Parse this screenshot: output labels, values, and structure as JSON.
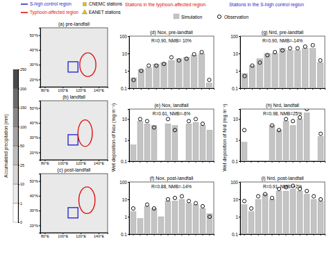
{
  "chart_data": [
    {
      "type": "map",
      "title": "(a) pre-landfall",
      "xlim": [
        75,
        150
      ],
      "ylim": [
        15,
        55
      ],
      "xticks": [
        {
          "value": 80,
          "label": "80°E"
        },
        {
          "value": 100,
          "label": "100°E"
        },
        {
          "value": 120,
          "label": "120°E"
        },
        {
          "value": 140,
          "label": "140°E"
        }
      ],
      "yticks": [
        {
          "value": 20,
          "label": "20°N"
        },
        {
          "value": 30,
          "label": "30°N"
        },
        {
          "value": 40,
          "label": "40°N"
        },
        {
          "value": 50,
          "label": "50°N"
        }
      ],
      "regions": [
        {
          "name": "S-high control region",
          "color": "#2b2bd0",
          "lon": [
            106,
            117
          ],
          "lat": [
            25,
            32
          ]
        },
        {
          "name": "Typhoon-affected region",
          "color": "#e01010",
          "lon": [
            119,
            137
          ],
          "lat": [
            22,
            38
          ]
        }
      ],
      "stations": [
        {
          "name": "CNEMC stations",
          "color": "#f2c300",
          "marker": "square"
        },
        {
          "name": "EANET stations",
          "color": "#f2c300",
          "marker": "triangle"
        }
      ]
    },
    {
      "type": "map",
      "title": "(b) landfall",
      "xlim": [
        75,
        150
      ],
      "ylim": [
        15,
        55
      ],
      "xticks": [
        {
          "value": 80,
          "label": "80°E"
        },
        {
          "value": 100,
          "label": "100°E"
        },
        {
          "value": 120,
          "label": "120°E"
        },
        {
          "value": 140,
          "label": "140°E"
        }
      ],
      "yticks": [
        {
          "value": 20,
          "label": "20°N"
        },
        {
          "value": 30,
          "label": "30°N"
        },
        {
          "value": 40,
          "label": "40°N"
        },
        {
          "value": 50,
          "label": "50°N"
        }
      ],
      "regions": [
        {
          "color": "#2b2bd0",
          "lon": [
            106,
            117
          ],
          "lat": [
            25,
            32
          ]
        },
        {
          "color": "#e01010",
          "lon": [
            117,
            133
          ],
          "lat": [
            24,
            42
          ]
        }
      ]
    },
    {
      "type": "map",
      "title": "(c) post-landfall",
      "xlim": [
        75,
        150
      ],
      "ylim": [
        15,
        55
      ],
      "xticks": [
        {
          "value": 80,
          "label": "80°E"
        },
        {
          "value": 100,
          "label": "100°E"
        },
        {
          "value": 120,
          "label": "120°E"
        },
        {
          "value": 140,
          "label": "140°E"
        }
      ],
      "yticks": [
        {
          "value": 20,
          "label": "20°N"
        },
        {
          "value": 30,
          "label": "30°N"
        },
        {
          "value": 40,
          "label": "40°N"
        },
        {
          "value": 50,
          "label": "50°N"
        }
      ],
      "regions": [
        {
          "color": "#2b2bd0",
          "lon": [
            106,
            117
          ],
          "lat": [
            25,
            32
          ]
        },
        {
          "color": "#e01010",
          "lon": [
            118,
            136
          ],
          "lat": [
            28,
            46
          ]
        }
      ]
    },
    {
      "type": "bar",
      "log": "y",
      "title": "(d) Nox, pre-landfall",
      "subtitle": "R=0.90, NMB= 10%",
      "categories": [
        null,
        null,
        null,
        null,
        null,
        null,
        null,
        null,
        null,
        null,
        null
      ],
      "ylim": [
        0.1,
        100
      ],
      "yticks": [
        0.1,
        1,
        10,
        100
      ],
      "series": [
        {
          "name": "Simulation",
          "color": "#c4c4c4",
          "values": [
            0.4,
            1.2,
            1.5,
            2.5,
            3,
            4,
            5,
            6,
            8,
            10,
            0.2
          ]
        },
        {
          "name": "Observation",
          "type": "scatter",
          "marker": "circle",
          "color": "#000000",
          "values": [
            0.3,
            1,
            2,
            2,
            2.5,
            6,
            4,
            5,
            9,
            12,
            0.3
          ]
        }
      ]
    },
    {
      "type": "bar",
      "log": "y",
      "title": "(e) Nox, landfall",
      "subtitle": "R=0.61, NMB=-6%",
      "ylabel": "Wet deposition of Nox (mg m⁻²)",
      "categories": [
        null,
        null,
        null,
        null,
        null,
        null,
        null,
        null,
        null,
        null,
        null,
        null
      ],
      "ylim": [
        0.1,
        30
      ],
      "yticks": [
        0.1,
        1,
        10
      ],
      "series": [
        {
          "name": "Simulation",
          "color": "#c4c4c4",
          "values": [
            0.6,
            8,
            6,
            5,
            null,
            6,
            5,
            null,
            6,
            7,
            5,
            3
          ]
        },
        {
          "name": "Observation",
          "type": "scatter",
          "marker": "circle",
          "color": "#000000",
          "values": [
            null,
            10,
            8,
            4,
            null,
            10,
            3,
            null,
            8,
            10,
            6,
            null
          ]
        }
      ]
    },
    {
      "type": "bar",
      "log": "y",
      "title": "(f) Nox, post-landfall",
      "subtitle": "R=0.88, NMB=-14%",
      "categories": [
        null,
        null,
        null,
        null,
        null,
        null,
        null,
        null,
        null,
        null,
        null,
        null
      ],
      "ylim": [
        0.1,
        100
      ],
      "yticks": [
        0.1,
        1,
        10,
        100
      ],
      "series": [
        {
          "name": "Simulation",
          "color": "#c4c4c4",
          "values": [
            2,
            0.8,
            4,
            3,
            1,
            8,
            8,
            10,
            6,
            5,
            3,
            1.5
          ]
        },
        {
          "name": "Observation",
          "type": "scatter",
          "marker": "circle",
          "color": "#000000",
          "values": [
            3,
            null,
            5,
            3,
            null,
            10,
            12,
            15,
            8,
            6,
            4,
            1
          ]
        }
      ]
    },
    {
      "type": "bar",
      "log": "y",
      "title": "(g) Nrd, pre-landfall",
      "subtitle": "R=0.90, NMB=-14%",
      "categories": [
        null,
        null,
        null,
        null,
        null,
        null,
        null,
        null,
        null,
        null,
        null
      ],
      "ylim": [
        0.1,
        100
      ],
      "yticks": [
        0.1,
        1,
        10,
        100
      ],
      "series": [
        {
          "name": "Simulation",
          "color": "#c4c4c4",
          "values": [
            0.7,
            2,
            5,
            10,
            10,
            20,
            15,
            15,
            20,
            20,
            3
          ]
        },
        {
          "name": "Observation",
          "type": "scatter",
          "marker": "circle",
          "color": "#000000",
          "values": [
            0.5,
            2,
            3,
            8,
            12,
            15,
            20,
            20,
            25,
            30,
            4
          ]
        }
      ]
    },
    {
      "type": "bar",
      "log": "y",
      "title": "(h) Nrd, landfall",
      "subtitle": "R=0.98, NMB=25%",
      "ylabel": "Wet deposition of Nrd (mg m⁻²)",
      "categories": [
        null,
        null,
        null,
        null,
        null,
        null,
        null,
        null,
        null,
        null,
        null,
        null
      ],
      "ylim": [
        0.1,
        30
      ],
      "yticks": [
        0.1,
        1,
        10
      ],
      "series": [
        {
          "name": "Simulation",
          "color": "#c4c4c4",
          "values": [
            0.8,
            null,
            null,
            null,
            5,
            3,
            8,
            5,
            10,
            20,
            null,
            1.5
          ]
        },
        {
          "name": "Observation",
          "type": "scatter",
          "marker": "circle",
          "color": "#000000",
          "values": [
            3,
            null,
            null,
            null,
            5,
            3,
            10,
            8,
            12,
            30,
            null,
            2
          ]
        }
      ]
    },
    {
      "type": "bar",
      "log": "y",
      "title": "(i) Nrd, post-landfall",
      "subtitle": "R=0.91, NMB=+2%",
      "categories": [
        null,
        null,
        null,
        null,
        null,
        null,
        null,
        null,
        null,
        null,
        null,
        null
      ],
      "ylim": [
        0.1,
        100
      ],
      "yticks": [
        0.1,
        1,
        10,
        100
      ],
      "series": [
        {
          "name": "Simulation",
          "color": "#c4c4c4",
          "values": [
            5,
            2,
            10,
            20,
            10,
            30,
            30,
            40,
            30,
            20,
            10,
            8
          ]
        },
        {
          "name": "Observation",
          "type": "scatter",
          "marker": "circle",
          "color": "#000000",
          "values": [
            8,
            3,
            15,
            20,
            12,
            40,
            50,
            60,
            40,
            30,
            15,
            10
          ]
        }
      ]
    },
    {
      "type": "colorbar",
      "title": "Accumulated precipitation (mm)",
      "ticks": [
        0,
        1,
        10,
        25,
        50,
        100,
        150,
        200,
        250
      ],
      "colors": [
        "#ffffff",
        "#ececec",
        "#d6d6d6",
        "#bdbdbd",
        "#a3a3a3",
        "#888888",
        "#6b6b6b",
        "#4a4a4a"
      ]
    }
  ],
  "label_legend": [
    {
      "name": "Stations in the typhoon-affected region",
      "color": "#e01010"
    },
    {
      "name": "Stations in the S-high control region",
      "color": "#2b2bd0"
    }
  ]
}
